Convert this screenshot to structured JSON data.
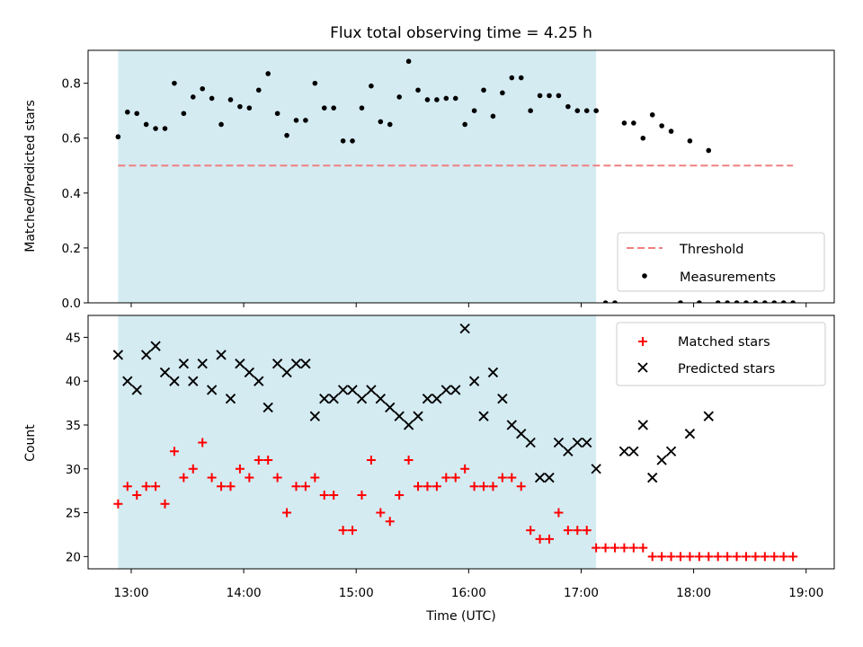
{
  "title": "Flux total observing time = 4.25 h",
  "colors": {
    "shade": "#add8e6",
    "threshold": "#f08080",
    "matched": "#ff0000",
    "predicted": "#000000",
    "measurement": "#000000"
  },
  "chart_data": [
    {
      "type": "scatter",
      "panel": "top",
      "ylabel": "Matched/Predicted stars",
      "xlim": [
        "12:37",
        "19:15"
      ],
      "ylim": [
        0,
        0.92
      ],
      "yticks": [
        0.0,
        0.2,
        0.4,
        0.6,
        0.8
      ],
      "ytick_labels": [
        "0.0",
        "0.2",
        "0.4",
        "0.6",
        "0.8"
      ],
      "shaded_region": [
        "12:53",
        "17:08"
      ],
      "legend_position": "lower right",
      "legend": [
        "Threshold",
        "Measurements"
      ],
      "threshold": {
        "name": "Threshold",
        "x_range": [
          "12:53",
          "18:53"
        ],
        "y": 0.5
      },
      "series": [
        {
          "name": "Measurements",
          "x": [
            "12:53",
            "12:58",
            "13:03",
            "13:08",
            "13:13",
            "13:18",
            "13:23",
            "13:28",
            "13:33",
            "13:38",
            "13:43",
            "13:48",
            "13:53",
            "13:58",
            "14:03",
            "14:08",
            "14:13",
            "14:18",
            "14:23",
            "14:28",
            "14:33",
            "14:38",
            "14:43",
            "14:48",
            "14:53",
            "14:58",
            "15:03",
            "15:08",
            "15:13",
            "15:18",
            "15:23",
            "15:28",
            "15:33",
            "15:38",
            "15:43",
            "15:48",
            "15:53",
            "15:58",
            "16:03",
            "16:08",
            "16:13",
            "16:18",
            "16:23",
            "16:28",
            "16:33",
            "16:38",
            "16:43",
            "16:48",
            "16:53",
            "16:58",
            "17:03",
            "17:08",
            "17:13",
            "17:18",
            "17:23",
            "17:28",
            "17:33",
            "17:38",
            "17:43",
            "17:48",
            "17:53",
            "17:58",
            "18:03",
            "18:08",
            "18:13",
            "18:18",
            "18:23",
            "18:28",
            "18:33",
            "18:38",
            "18:43",
            "18:48",
            "18:53"
          ],
          "y": [
            0.605,
            0.695,
            0.69,
            0.65,
            0.635,
            0.635,
            0.8,
            0.69,
            0.75,
            0.78,
            0.745,
            0.65,
            0.74,
            0.715,
            0.71,
            0.775,
            0.835,
            0.69,
            0.61,
            0.665,
            0.665,
            0.8,
            0.71,
            0.71,
            0.59,
            0.59,
            0.71,
            0.79,
            0.66,
            0.65,
            0.75,
            0.88,
            0.775,
            0.74,
            0.74,
            0.745,
            0.745,
            0.65,
            0.7,
            0.775,
            0.68,
            0.765,
            0.82,
            0.82,
            0.7,
            0.755,
            0.755,
            0.755,
            0.715,
            0.7,
            0.7,
            0.7,
            0.0,
            0.0,
            0.655,
            0.655,
            0.6,
            0.685,
            0.645,
            0.625,
            0.0,
            0.59,
            0.0,
            0.555,
            0.0,
            0.0,
            0.0,
            0.0,
            0.0,
            0.0,
            0.0,
            0.0,
            0.0
          ]
        }
      ]
    },
    {
      "type": "scatter",
      "panel": "bottom",
      "xlabel": "Time (UTC)",
      "ylabel": "Count",
      "xlim": [
        "12:37",
        "19:15"
      ],
      "ylim": [
        18.6,
        47.5
      ],
      "yticks": [
        20,
        25,
        30,
        35,
        40,
        45
      ],
      "ytick_labels": [
        "20",
        "25",
        "30",
        "35",
        "40",
        "45"
      ],
      "xticks": [
        "13:00",
        "14:00",
        "15:00",
        "16:00",
        "17:00",
        "18:00",
        "19:00"
      ],
      "shaded_region": [
        "12:53",
        "17:08"
      ],
      "legend_position": "upper right",
      "legend": [
        "Matched stars",
        "Predicted stars"
      ],
      "series": [
        {
          "name": "Matched stars",
          "marker": "+",
          "x": [
            "12:53",
            "12:58",
            "13:03",
            "13:08",
            "13:13",
            "13:18",
            "13:23",
            "13:28",
            "13:33",
            "13:38",
            "13:43",
            "13:48",
            "13:53",
            "13:58",
            "14:03",
            "14:08",
            "14:13",
            "14:18",
            "14:23",
            "14:28",
            "14:33",
            "14:38",
            "14:43",
            "14:48",
            "14:53",
            "14:58",
            "15:03",
            "15:08",
            "15:13",
            "15:18",
            "15:23",
            "15:28",
            "15:33",
            "15:38",
            "15:43",
            "15:48",
            "15:53",
            "15:58",
            "16:03",
            "16:08",
            "16:13",
            "16:18",
            "16:23",
            "16:28",
            "16:33",
            "16:38",
            "16:43",
            "16:48",
            "16:53",
            "16:58",
            "17:03",
            "17:08",
            "17:13",
            "17:18",
            "17:23",
            "17:28",
            "17:33",
            "17:38",
            "17:43",
            "17:48",
            "17:53",
            "17:58",
            "18:03",
            "18:08",
            "18:13",
            "18:18",
            "18:23",
            "18:28",
            "18:33",
            "18:38",
            "18:43",
            "18:48",
            "18:53"
          ],
          "y": [
            26,
            28,
            27,
            28,
            28,
            26,
            32,
            29,
            30,
            33,
            29,
            28,
            28,
            30,
            29,
            31,
            31,
            29,
            25,
            28,
            28,
            29,
            27,
            27,
            23,
            23,
            27,
            31,
            25,
            24,
            27,
            31,
            28,
            28,
            28,
            29,
            29,
            30,
            28,
            28,
            28,
            29,
            29,
            28,
            23,
            22,
            22,
            25,
            23,
            23,
            23,
            21,
            21,
            21,
            21,
            21,
            21,
            20,
            20,
            20,
            20,
            20,
            20,
            20,
            20,
            20,
            20,
            20,
            20,
            20,
            20,
            20,
            20
          ]
        },
        {
          "name": "Predicted stars",
          "marker": "x",
          "x": [
            "12:53",
            "12:58",
            "13:03",
            "13:08",
            "13:13",
            "13:18",
            "13:23",
            "13:28",
            "13:33",
            "13:38",
            "13:43",
            "13:48",
            "13:53",
            "13:58",
            "14:03",
            "14:08",
            "14:13",
            "14:18",
            "14:23",
            "14:28",
            "14:33",
            "14:38",
            "14:43",
            "14:48",
            "14:53",
            "14:58",
            "15:03",
            "15:08",
            "15:13",
            "15:18",
            "15:23",
            "15:28",
            "15:33",
            "15:38",
            "15:43",
            "15:48",
            "15:53",
            "15:58",
            "16:03",
            "16:08",
            "16:13",
            "16:18",
            "16:23",
            "16:28",
            "16:33",
            "16:38",
            "16:43",
            "16:48",
            "16:53",
            "16:58",
            "17:03",
            "17:08",
            "17:23",
            "17:28",
            "17:33",
            "17:38",
            "17:43",
            "17:48",
            "17:58",
            "18:08"
          ],
          "y": [
            43,
            40,
            39,
            43,
            44,
            41,
            40,
            42,
            40,
            42,
            39,
            43,
            38,
            42,
            41,
            40,
            37,
            42,
            41,
            42,
            42,
            36,
            38,
            38,
            39,
            39,
            38,
            39,
            38,
            37,
            36,
            35,
            36,
            38,
            38,
            39,
            39,
            46,
            40,
            36,
            41,
            38,
            35,
            34,
            33,
            29,
            29,
            33,
            32,
            33,
            33,
            30,
            32,
            32,
            35,
            29,
            31,
            32,
            34,
            36
          ]
        }
      ]
    }
  ]
}
